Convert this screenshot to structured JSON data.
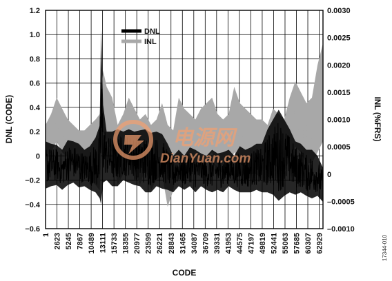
{
  "chart_data": {
    "type": "line",
    "title": "",
    "xlabel": "CODE",
    "ylabel_left": "DNL (CODE)",
    "ylabel_right": "INL (%FRS)",
    "xlim": [
      1,
      65535
    ],
    "ylim_left": [
      -0.6,
      1.2
    ],
    "ylim_right": [
      -0.001,
      0.003
    ],
    "yticks_left": [
      "−0.6",
      "−0.4",
      "−0.2",
      "0",
      "0.2",
      "0.4",
      "0.6",
      "0.8",
      "1.0",
      "1.2"
    ],
    "yticks_right": [
      "–0.0010",
      "–0.0005",
      "0",
      "0.0005",
      "0.0010",
      "0.0015",
      "0.0020",
      "0.0025",
      "0.0030"
    ],
    "xticks": [
      "1",
      "2623",
      "5245",
      "7867",
      "10489",
      "13111",
      "15733",
      "18355",
      "20977",
      "23599",
      "26221",
      "28843",
      "31465",
      "34087",
      "36709",
      "39331",
      "41953",
      "44575",
      "47197",
      "49819",
      "52441",
      "55063",
      "57685",
      "60307",
      "62929"
    ],
    "grid": true,
    "legend_position": "top-center",
    "series": [
      {
        "name": "DNL",
        "axis": "left",
        "color": "#000000",
        "x": [
          1,
          1311,
          2623,
          3934,
          5245,
          6556,
          7867,
          9178,
          10489,
          11800,
          12800,
          13111,
          13600,
          14422,
          15733,
          17044,
          18355,
          19666,
          20977,
          22288,
          23599,
          24910,
          26221,
          27532,
          28843,
          30154,
          31465,
          32776,
          34087,
          35398,
          36709,
          38020,
          39331,
          40642,
          41953,
          43264,
          44575,
          45886,
          47197,
          48508,
          49819,
          51130,
          52441,
          53752,
          55063,
          56374,
          57685,
          58996,
          60307,
          61618,
          62929,
          64240,
          65535
        ],
        "upper": [
          0.12,
          0.1,
          0.09,
          0.05,
          0.13,
          0.12,
          0.1,
          0.05,
          0.08,
          0.15,
          0.25,
          1.04,
          0.42,
          0.2,
          0.2,
          0.22,
          0.2,
          0.22,
          0.2,
          0.21,
          0.22,
          0.19,
          0.2,
          0.18,
          0.1,
          0.0,
          0.05,
          0.0,
          0.07,
          0.05,
          0.02,
          0.0,
          0.05,
          0.02,
          0.03,
          0.05,
          0.0,
          0.08,
          0.05,
          0.07,
          0.1,
          0.1,
          0.22,
          0.3,
          0.38,
          0.3,
          0.22,
          0.12,
          0.1,
          0.05,
          0.05,
          0.0,
          -0.1
        ],
        "lower": [
          -0.27,
          -0.25,
          -0.24,
          -0.28,
          -0.24,
          -0.22,
          -0.26,
          -0.25,
          -0.28,
          -0.3,
          -0.35,
          -0.4,
          -0.22,
          -0.2,
          -0.25,
          -0.25,
          -0.2,
          -0.22,
          -0.24,
          -0.25,
          -0.3,
          -0.3,
          -0.25,
          -0.27,
          -0.28,
          -0.3,
          -0.25,
          -0.28,
          -0.25,
          -0.3,
          -0.25,
          -0.28,
          -0.3,
          -0.28,
          -0.3,
          -0.25,
          -0.28,
          -0.3,
          -0.3,
          -0.3,
          -0.28,
          -0.3,
          -0.3,
          -0.32,
          -0.37,
          -0.33,
          -0.3,
          -0.32,
          -0.3,
          -0.33,
          -0.35,
          -0.33,
          -0.38
        ]
      },
      {
        "name": "INL",
        "axis": "right",
        "color": "#a8a8a8",
        "x": [
          1,
          1311,
          2623,
          3934,
          5245,
          6556,
          7867,
          9178,
          10489,
          11800,
          12800,
          13111,
          13600,
          14422,
          15733,
          17044,
          18355,
          19666,
          20977,
          22288,
          23599,
          24910,
          26221,
          27532,
          28843,
          30154,
          31465,
          32776,
          34087,
          35398,
          36709,
          38020,
          39331,
          40642,
          41953,
          43264,
          44575,
          45886,
          47197,
          48508,
          49819,
          51130,
          52441,
          53752,
          55063,
          56374,
          57685,
          58996,
          60307,
          61618,
          62929,
          64240,
          65535
        ],
        "upper": [
          0.0009,
          0.0011,
          0.0014,
          0.0012,
          0.001,
          0.0009,
          0.0008,
          0.0008,
          0.0009,
          0.001,
          0.0011,
          0.0014,
          0.0019,
          0.0016,
          0.0014,
          0.0009,
          0.0011,
          0.0014,
          0.0012,
          0.001,
          0.0011,
          0.0009,
          0.001,
          0.0013,
          0.0009,
          0.0008,
          0.0014,
          0.0012,
          0.0011,
          0.001,
          0.0012,
          0.0013,
          0.0014,
          0.0011,
          0.001,
          0.0011,
          0.0016,
          0.0013,
          0.0012,
          0.0011,
          0.001,
          0.001,
          0.0009,
          0.0012,
          0.0011,
          0.001,
          0.0014,
          0.0017,
          0.0015,
          0.0013,
          0.0014,
          0.002,
          0.0024
        ],
        "lower": [
          0.0003,
          0.0004,
          0.0006,
          0.0004,
          0.0003,
          0.0002,
          0.0001,
          0.0,
          -0.0001,
          -0.0002,
          -0.0003,
          0.0003,
          0.0008,
          0.0006,
          0.0004,
          -0.0002,
          0.0,
          0.0003,
          0.0001,
          -0.0002,
          0.0001,
          -0.0003,
          -0.0001,
          0.0,
          -0.0006,
          -0.0003,
          0.0002,
          0.0001,
          0.0,
          0.0,
          0.0002,
          0.0003,
          0.0004,
          0.0001,
          0.0,
          0.0001,
          0.0004,
          0.0002,
          0.0001,
          0.0,
          0.0,
          -0.0001,
          -0.0002,
          0.0002,
          0.0001,
          0.0,
          0.0003,
          0.0005,
          0.0004,
          0.0002,
          0.0002,
          0.0004,
          0.0006
        ]
      }
    ]
  },
  "figure_id": "17344-010",
  "watermark": {
    "cn_text": "电源网",
    "en_text": "DianYuan.com",
    "color": "#f4a070"
  }
}
